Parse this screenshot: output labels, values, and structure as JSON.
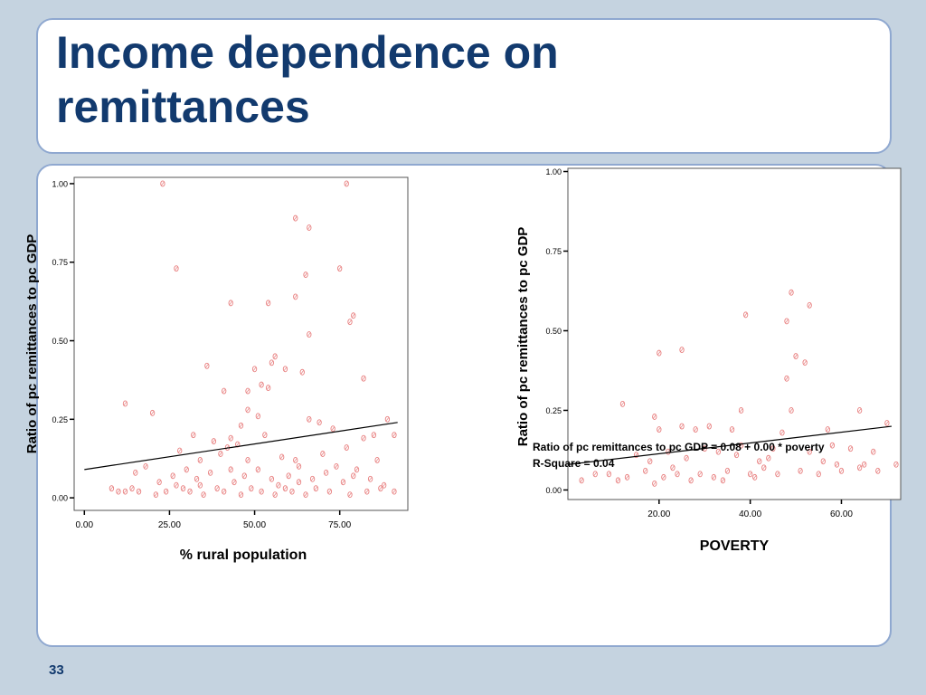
{
  "slide": {
    "title_line1": "Income dependence on",
    "title_line2": "remittances",
    "page_number": "33"
  },
  "chart_data": [
    {
      "type": "scatter",
      "title": "",
      "xlabel": "% rural population",
      "ylabel": "Ratio of pc remittances to pc GDP",
      "xlim": [
        -3,
        95
      ],
      "ylim": [
        -0.04,
        1.02
      ],
      "xticks": [
        0,
        25,
        50,
        75
      ],
      "xtick_labels": [
        "0.00",
        "25.00",
        "50.00",
        "75.00"
      ],
      "yticks": [
        0,
        0.25,
        0.5,
        0.75,
        1.0
      ],
      "ytick_labels": [
        "0.00",
        "0.25",
        "0.50",
        "0.75",
        "1.00"
      ],
      "point_color": "#e88080",
      "fit_line": [
        [
          0,
          0.09
        ],
        [
          92,
          0.24
        ]
      ],
      "points": [
        [
          23,
          1.0
        ],
        [
          77,
          1.0
        ],
        [
          62,
          0.89
        ],
        [
          66,
          0.86
        ],
        [
          27,
          0.73
        ],
        [
          75,
          0.73
        ],
        [
          65,
          0.71
        ],
        [
          43,
          0.62
        ],
        [
          54,
          0.62
        ],
        [
          62,
          0.64
        ],
        [
          79,
          0.58
        ],
        [
          78,
          0.56
        ],
        [
          66,
          0.52
        ],
        [
          36,
          0.42
        ],
        [
          55,
          0.43
        ],
        [
          56,
          0.45
        ],
        [
          59,
          0.41
        ],
        [
          50,
          0.41
        ],
        [
          64,
          0.4
        ],
        [
          12,
          0.3
        ],
        [
          41,
          0.34
        ],
        [
          52,
          0.36
        ],
        [
          48,
          0.34
        ],
        [
          54,
          0.35
        ],
        [
          82,
          0.38
        ],
        [
          20,
          0.27
        ],
        [
          48,
          0.28
        ],
        [
          43,
          0.19
        ],
        [
          46,
          0.23
        ],
        [
          51,
          0.26
        ],
        [
          53,
          0.2
        ],
        [
          32,
          0.2
        ],
        [
          42,
          0.16
        ],
        [
          40,
          0.14
        ],
        [
          66,
          0.25
        ],
        [
          69,
          0.24
        ],
        [
          73,
          0.22
        ],
        [
          82,
          0.19
        ],
        [
          85,
          0.2
        ],
        [
          89,
          0.25
        ],
        [
          91,
          0.2
        ],
        [
          77,
          0.16
        ],
        [
          28,
          0.15
        ],
        [
          34,
          0.12
        ],
        [
          38,
          0.18
        ],
        [
          45,
          0.17
        ],
        [
          58,
          0.13
        ],
        [
          62,
          0.12
        ],
        [
          70,
          0.14
        ],
        [
          74,
          0.1
        ],
        [
          80,
          0.09
        ],
        [
          86,
          0.12
        ],
        [
          15,
          0.08
        ],
        [
          18,
          0.1
        ],
        [
          22,
          0.05
        ],
        [
          26,
          0.07
        ],
        [
          30,
          0.09
        ],
        [
          33,
          0.06
        ],
        [
          37,
          0.08
        ],
        [
          44,
          0.05
        ],
        [
          47,
          0.07
        ],
        [
          51,
          0.09
        ],
        [
          55,
          0.06
        ],
        [
          60,
          0.07
        ],
        [
          63,
          0.05
        ],
        [
          67,
          0.06
        ],
        [
          71,
          0.08
        ],
        [
          76,
          0.05
        ],
        [
          79,
          0.07
        ],
        [
          84,
          0.06
        ],
        [
          88,
          0.04
        ],
        [
          8,
          0.03
        ],
        [
          10,
          0.02
        ],
        [
          12,
          0.02
        ],
        [
          14,
          0.03
        ],
        [
          16,
          0.02
        ],
        [
          21,
          0.01
        ],
        [
          24,
          0.02
        ],
        [
          29,
          0.03
        ],
        [
          31,
          0.02
        ],
        [
          35,
          0.01
        ],
        [
          39,
          0.03
        ],
        [
          41,
          0.02
        ],
        [
          46,
          0.01
        ],
        [
          49,
          0.03
        ],
        [
          52,
          0.02
        ],
        [
          56,
          0.01
        ],
        [
          59,
          0.03
        ],
        [
          61,
          0.02
        ],
        [
          65,
          0.01
        ],
        [
          68,
          0.03
        ],
        [
          72,
          0.02
        ],
        [
          78,
          0.01
        ],
        [
          83,
          0.02
        ],
        [
          87,
          0.03
        ],
        [
          91,
          0.02
        ],
        [
          34,
          0.04
        ],
        [
          57,
          0.04
        ],
        [
          63,
          0.1
        ],
        [
          48,
          0.12
        ],
        [
          27,
          0.04
        ],
        [
          43,
          0.09
        ]
      ]
    },
    {
      "type": "scatter",
      "title": "",
      "xlabel": "POVERTY",
      "ylabel": "Ratio of pc remittances to pc GDP",
      "xlim": [
        0,
        73
      ],
      "ylim": [
        -0.03,
        1.01
      ],
      "xticks": [
        20,
        40,
        60
      ],
      "xtick_labels": [
        "20.00",
        "40.00",
        "60.00"
      ],
      "yticks": [
        0,
        0.25,
        0.5,
        0.75,
        1.0
      ],
      "ytick_labels": [
        "0.00",
        "0.25",
        "0.50",
        "0.75",
        "1.00"
      ],
      "point_color": "#e88080",
      "fit_line": [
        [
          0,
          0.08
        ],
        [
          71,
          0.2
        ]
      ],
      "annotation_line1": "Ratio of pc remittances to pc GDP = 0.08 + 0.00 * poverty",
      "annotation_line2": "R-Square = 0.04",
      "points": [
        [
          49,
          0.62
        ],
        [
          53,
          0.58
        ],
        [
          39,
          0.55
        ],
        [
          48,
          0.53
        ],
        [
          50,
          0.42
        ],
        [
          52,
          0.4
        ],
        [
          20,
          0.43
        ],
        [
          25,
          0.44
        ],
        [
          48,
          0.35
        ],
        [
          12,
          0.27
        ],
        [
          19,
          0.23
        ],
        [
          20,
          0.19
        ],
        [
          25,
          0.2
        ],
        [
          28,
          0.19
        ],
        [
          31,
          0.2
        ],
        [
          36,
          0.19
        ],
        [
          38,
          0.25
        ],
        [
          47,
          0.18
        ],
        [
          49,
          0.25
        ],
        [
          57,
          0.19
        ],
        [
          64,
          0.25
        ],
        [
          70,
          0.21
        ],
        [
          15,
          0.11
        ],
        [
          18,
          0.09
        ],
        [
          22,
          0.12
        ],
        [
          26,
          0.1
        ],
        [
          30,
          0.13
        ],
        [
          33,
          0.12
        ],
        [
          37,
          0.11
        ],
        [
          42,
          0.09
        ],
        [
          45,
          0.13
        ],
        [
          53,
          0.12
        ],
        [
          58,
          0.14
        ],
        [
          62,
          0.13
        ],
        [
          67,
          0.12
        ],
        [
          72,
          0.08
        ],
        [
          9,
          0.05
        ],
        [
          13,
          0.04
        ],
        [
          17,
          0.06
        ],
        [
          21,
          0.04
        ],
        [
          24,
          0.05
        ],
        [
          27,
          0.03
        ],
        [
          29,
          0.05
        ],
        [
          32,
          0.04
        ],
        [
          35,
          0.06
        ],
        [
          40,
          0.05
        ],
        [
          43,
          0.07
        ],
        [
          46,
          0.05
        ],
        [
          51,
          0.06
        ],
        [
          55,
          0.05
        ],
        [
          59,
          0.08
        ],
        [
          64,
          0.07
        ],
        [
          68,
          0.06
        ],
        [
          3,
          0.03
        ],
        [
          6,
          0.05
        ],
        [
          11,
          0.03
        ],
        [
          19,
          0.02
        ],
        [
          34,
          0.03
        ],
        [
          41,
          0.04
        ],
        [
          60,
          0.06
        ],
        [
          65,
          0.08
        ],
        [
          56,
          0.09
        ],
        [
          44,
          0.1
        ],
        [
          38,
          0.14
        ],
        [
          23,
          0.07
        ]
      ]
    }
  ]
}
